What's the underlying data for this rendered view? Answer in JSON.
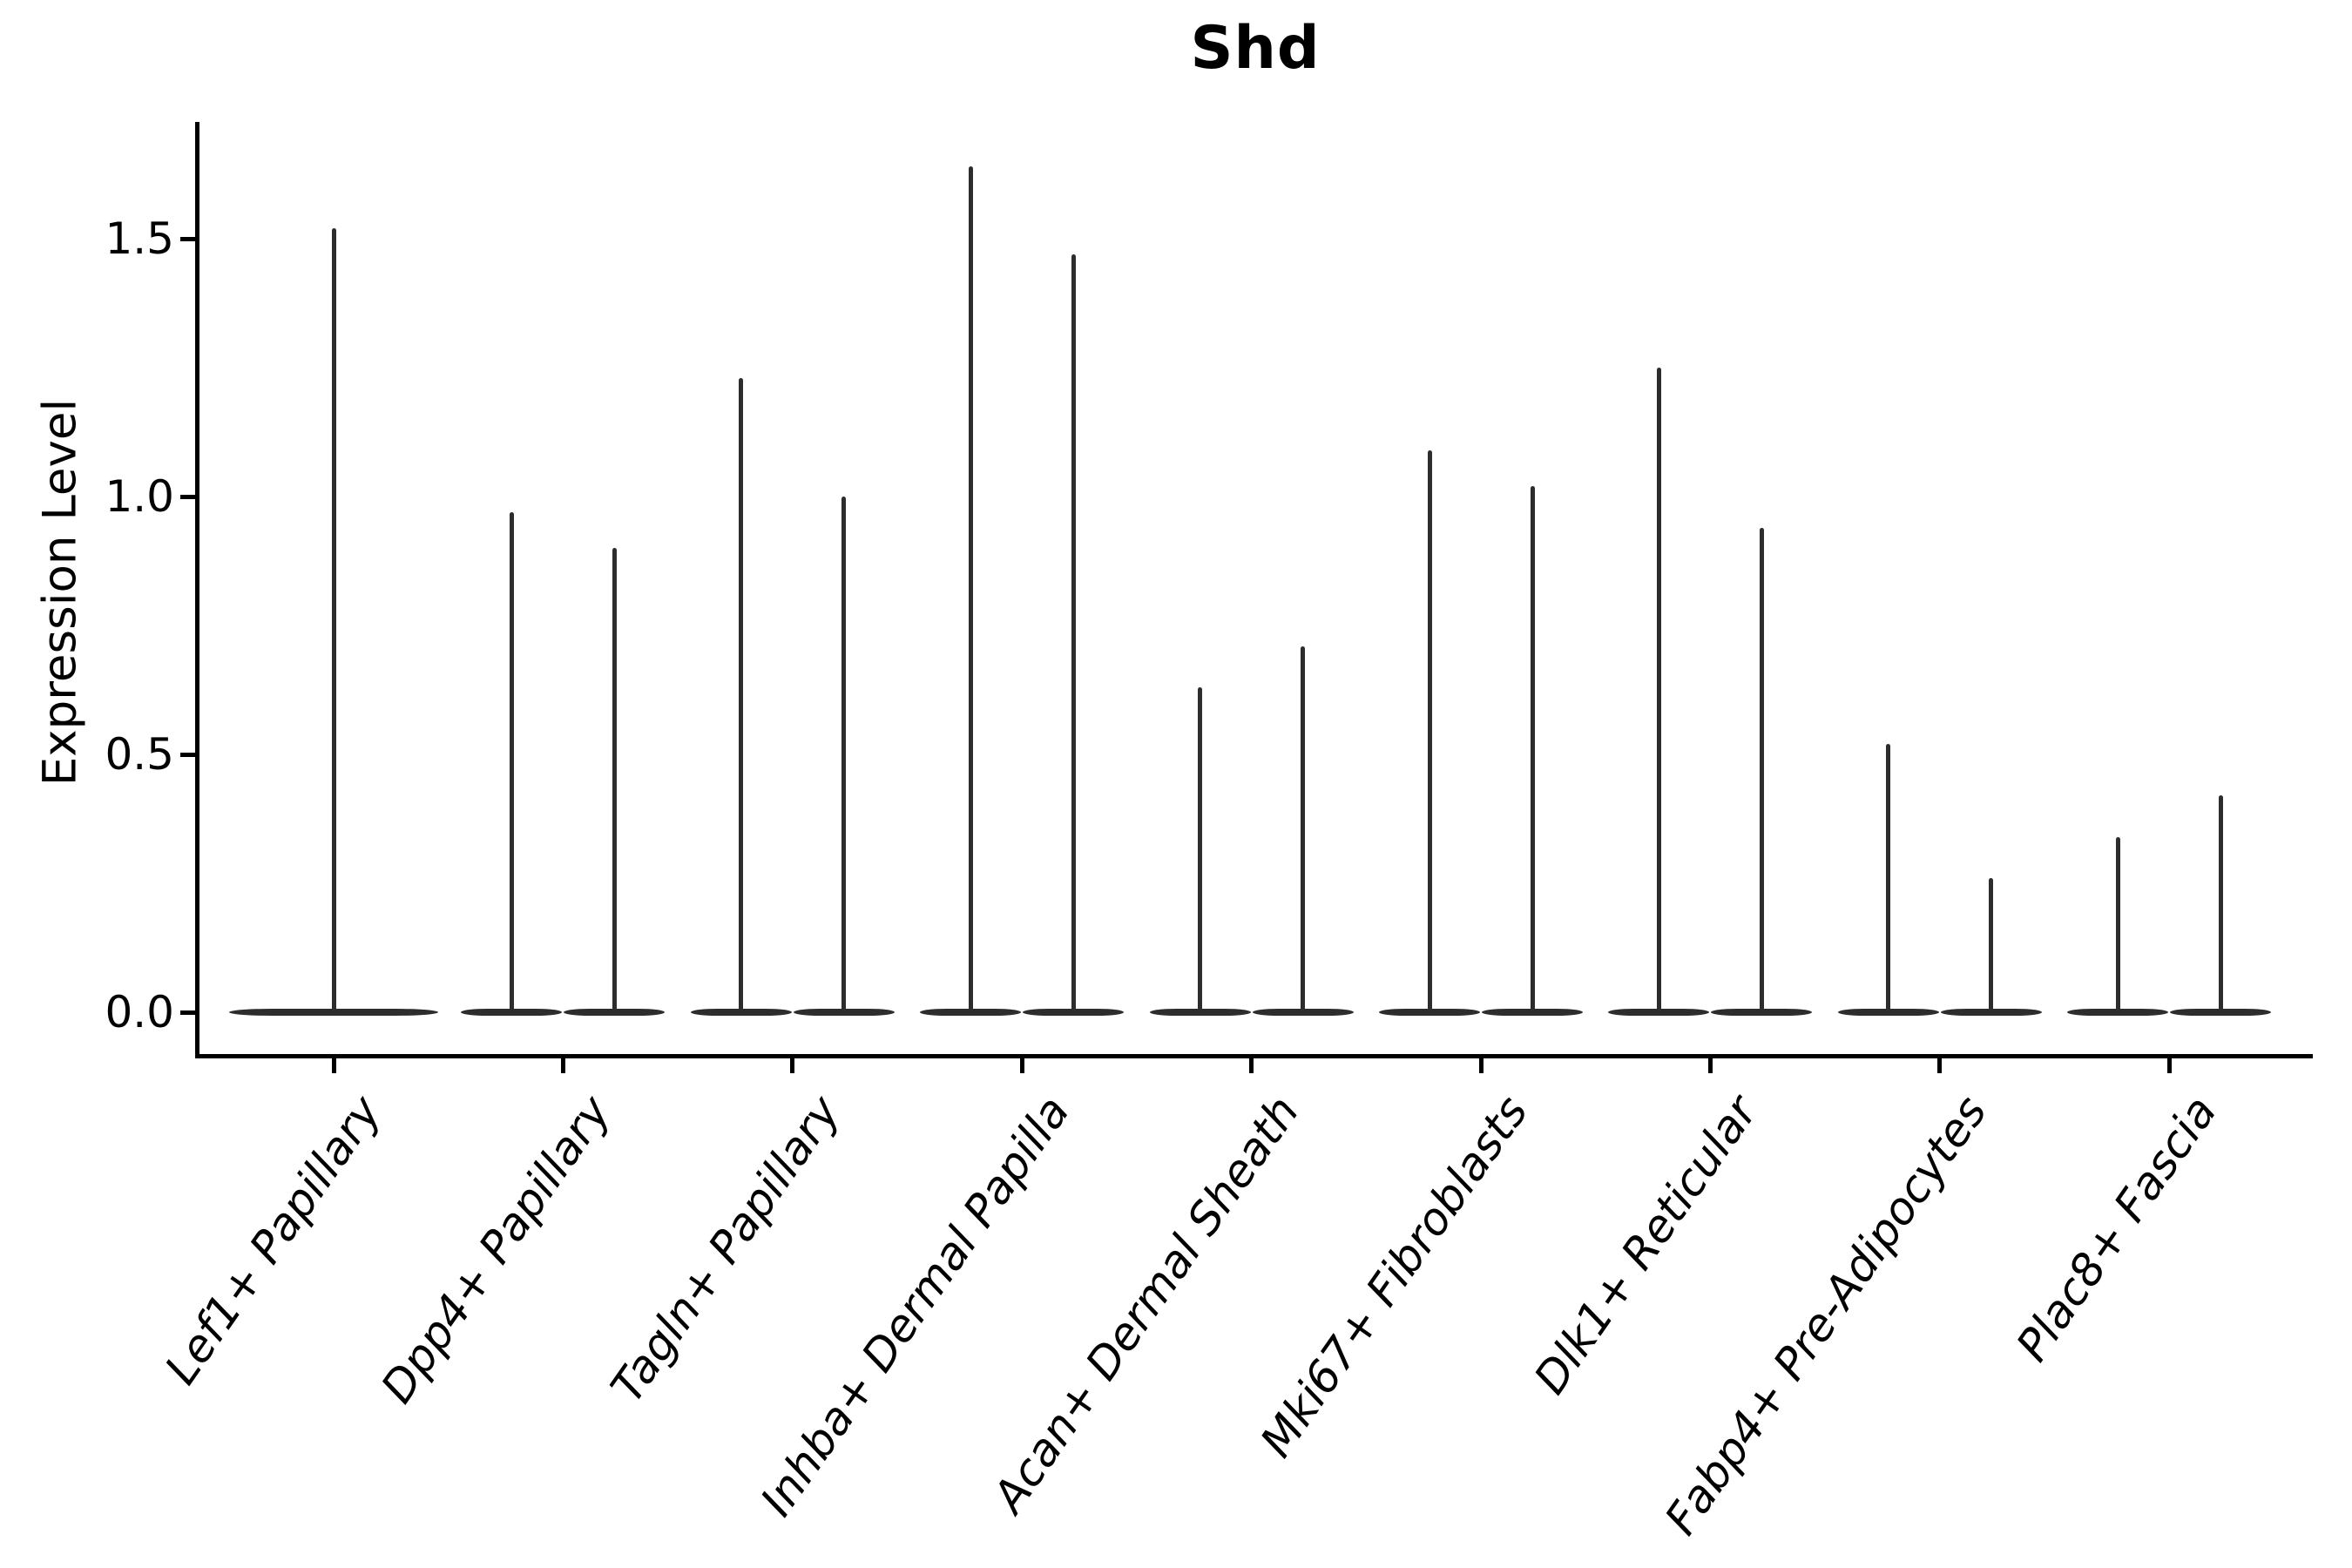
{
  "figure": {
    "title": "Shd",
    "ylabel": "Expression Level"
  },
  "chart_data": {
    "type": "violin",
    "title": "Shd",
    "xlabel": "",
    "ylabel": "Expression Level",
    "ylim": [
      0,
      1.73
    ],
    "yticks": [
      0.0,
      0.5,
      1.0,
      1.5
    ],
    "ytick_labels": [
      "0.0",
      "0.5",
      "1.0",
      "1.5"
    ],
    "grid": false,
    "legend": false,
    "x_tick_label_rotation_deg": 55,
    "x_tick_label_style": "italic",
    "baseline_value": 0.0,
    "categories": [
      "Lef1+ Papillary",
      "Dpp4+ Papillary",
      "Tagln+ Papillary",
      "Inhba+ Dermal Papilla",
      "Acan+ Dermal Sheath",
      "Mki67+ Fibroblasts",
      "Dlk1+ Reticular",
      "Fabp4+ Pre-Adipocytes",
      "Plac8+ Fascia"
    ],
    "series": [
      {
        "category": "Lef1+ Papillary",
        "violin_peaks": [
          1.52
        ]
      },
      {
        "category": "Dpp4+ Papillary",
        "violin_peaks": [
          0.97,
          0.9
        ]
      },
      {
        "category": "Tagln+ Papillary",
        "violin_peaks": [
          1.23,
          1.0
        ]
      },
      {
        "category": "Inhba+ Dermal Papilla",
        "violin_peaks": [
          1.64,
          1.47
        ]
      },
      {
        "category": "Acan+ Dermal Sheath",
        "violin_peaks": [
          0.63,
          0.71
        ]
      },
      {
        "category": "Mki67+ Fibroblasts",
        "violin_peaks": [
          1.09,
          1.02
        ]
      },
      {
        "category": "Dlk1+ Reticular",
        "violin_peaks": [
          1.25,
          0.94
        ]
      },
      {
        "category": "Fabp4+ Pre-Adipocytes",
        "violin_peaks": [
          0.52,
          0.26
        ]
      },
      {
        "category": "Plac8+ Fascia",
        "violin_peaks": [
          0.34,
          0.42
        ]
      }
    ],
    "description": "Vertical violin plot: each violin is a thin dark spike rising from 0 to its peak expression value, with a wide flat density bulge lying on the 0 baseline.",
    "colors": {
      "violin": "#2d2d2d",
      "axis": "#000000",
      "text": "#000000",
      "background": "#ffffff"
    }
  }
}
